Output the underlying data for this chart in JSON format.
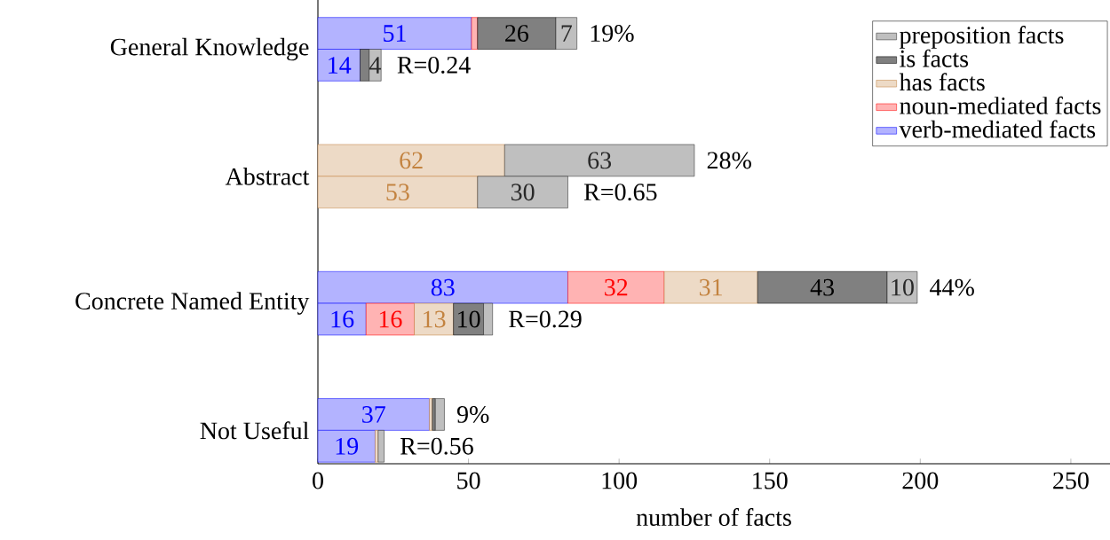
{
  "chart_data": {
    "type": "bar",
    "orientation": "horizontal",
    "stacked": true,
    "categories": [
      "General Knowledge",
      null,
      null,
      null,
      "Abstract",
      null,
      null,
      null,
      "Concrete Named Entity",
      null,
      null,
      null,
      "Not Useful",
      null
    ],
    "series": [
      {
        "name": "verb-mediated facts",
        "color": "#b3b3ff",
        "values": [
          51,
          14,
          null,
          null,
          null,
          null,
          null,
          null,
          83,
          16,
          null,
          null,
          37,
          19
        ],
        "value_labels": [
          "51",
          "14",
          null,
          null,
          null,
          null,
          null,
          null,
          "83",
          "16",
          null,
          null,
          "37",
          "19"
        ]
      },
      {
        "name": "noun-mediated facts",
        "color": "#ffb3b3",
        "values": [
          2,
          null,
          null,
          null,
          null,
          null,
          null,
          null,
          32,
          16,
          null,
          null,
          null,
          null
        ],
        "value_labels": [
          null,
          null,
          null,
          null,
          null,
          null,
          null,
          null,
          "32",
          "16",
          null,
          null,
          null,
          null
        ]
      },
      {
        "name": "has facts",
        "color": "#eddac6",
        "values": [
          null,
          null,
          null,
          null,
          62,
          53,
          null,
          null,
          31,
          13,
          null,
          null,
          1,
          1
        ],
        "value_labels": [
          null,
          null,
          null,
          null,
          "62",
          "53",
          null,
          null,
          "31",
          "13",
          null,
          null,
          null,
          null
        ]
      },
      {
        "name": "is facts",
        "color": "#808080",
        "values": [
          26,
          3,
          null,
          null,
          null,
          null,
          null,
          null,
          43,
          10,
          null,
          null,
          1,
          null
        ],
        "value_labels": [
          "26",
          null,
          null,
          null,
          null,
          null,
          null,
          null,
          "43",
          "10",
          null,
          null,
          null,
          null
        ]
      },
      {
        "name": "preposition facts",
        "color": "#bfbfbf",
        "values": [
          7,
          4,
          null,
          null,
          63,
          30,
          null,
          null,
          10,
          3,
          null,
          null,
          3,
          2
        ],
        "value_labels": [
          "7",
          "4",
          null,
          null,
          "63",
          "30",
          null,
          null,
          "10",
          null,
          null,
          null,
          null,
          null
        ]
      }
    ],
    "annotations": [
      "19%",
      "R=0.24",
      "28%",
      "R=0.65",
      "44%",
      "R=0.29",
      "9%",
      "R=0.56"
    ],
    "xlabel": "number of facts",
    "xlim": [
      0,
      263
    ],
    "xticks": [
      0,
      50,
      100,
      150,
      200,
      250
    ],
    "legend": "top right"
  }
}
